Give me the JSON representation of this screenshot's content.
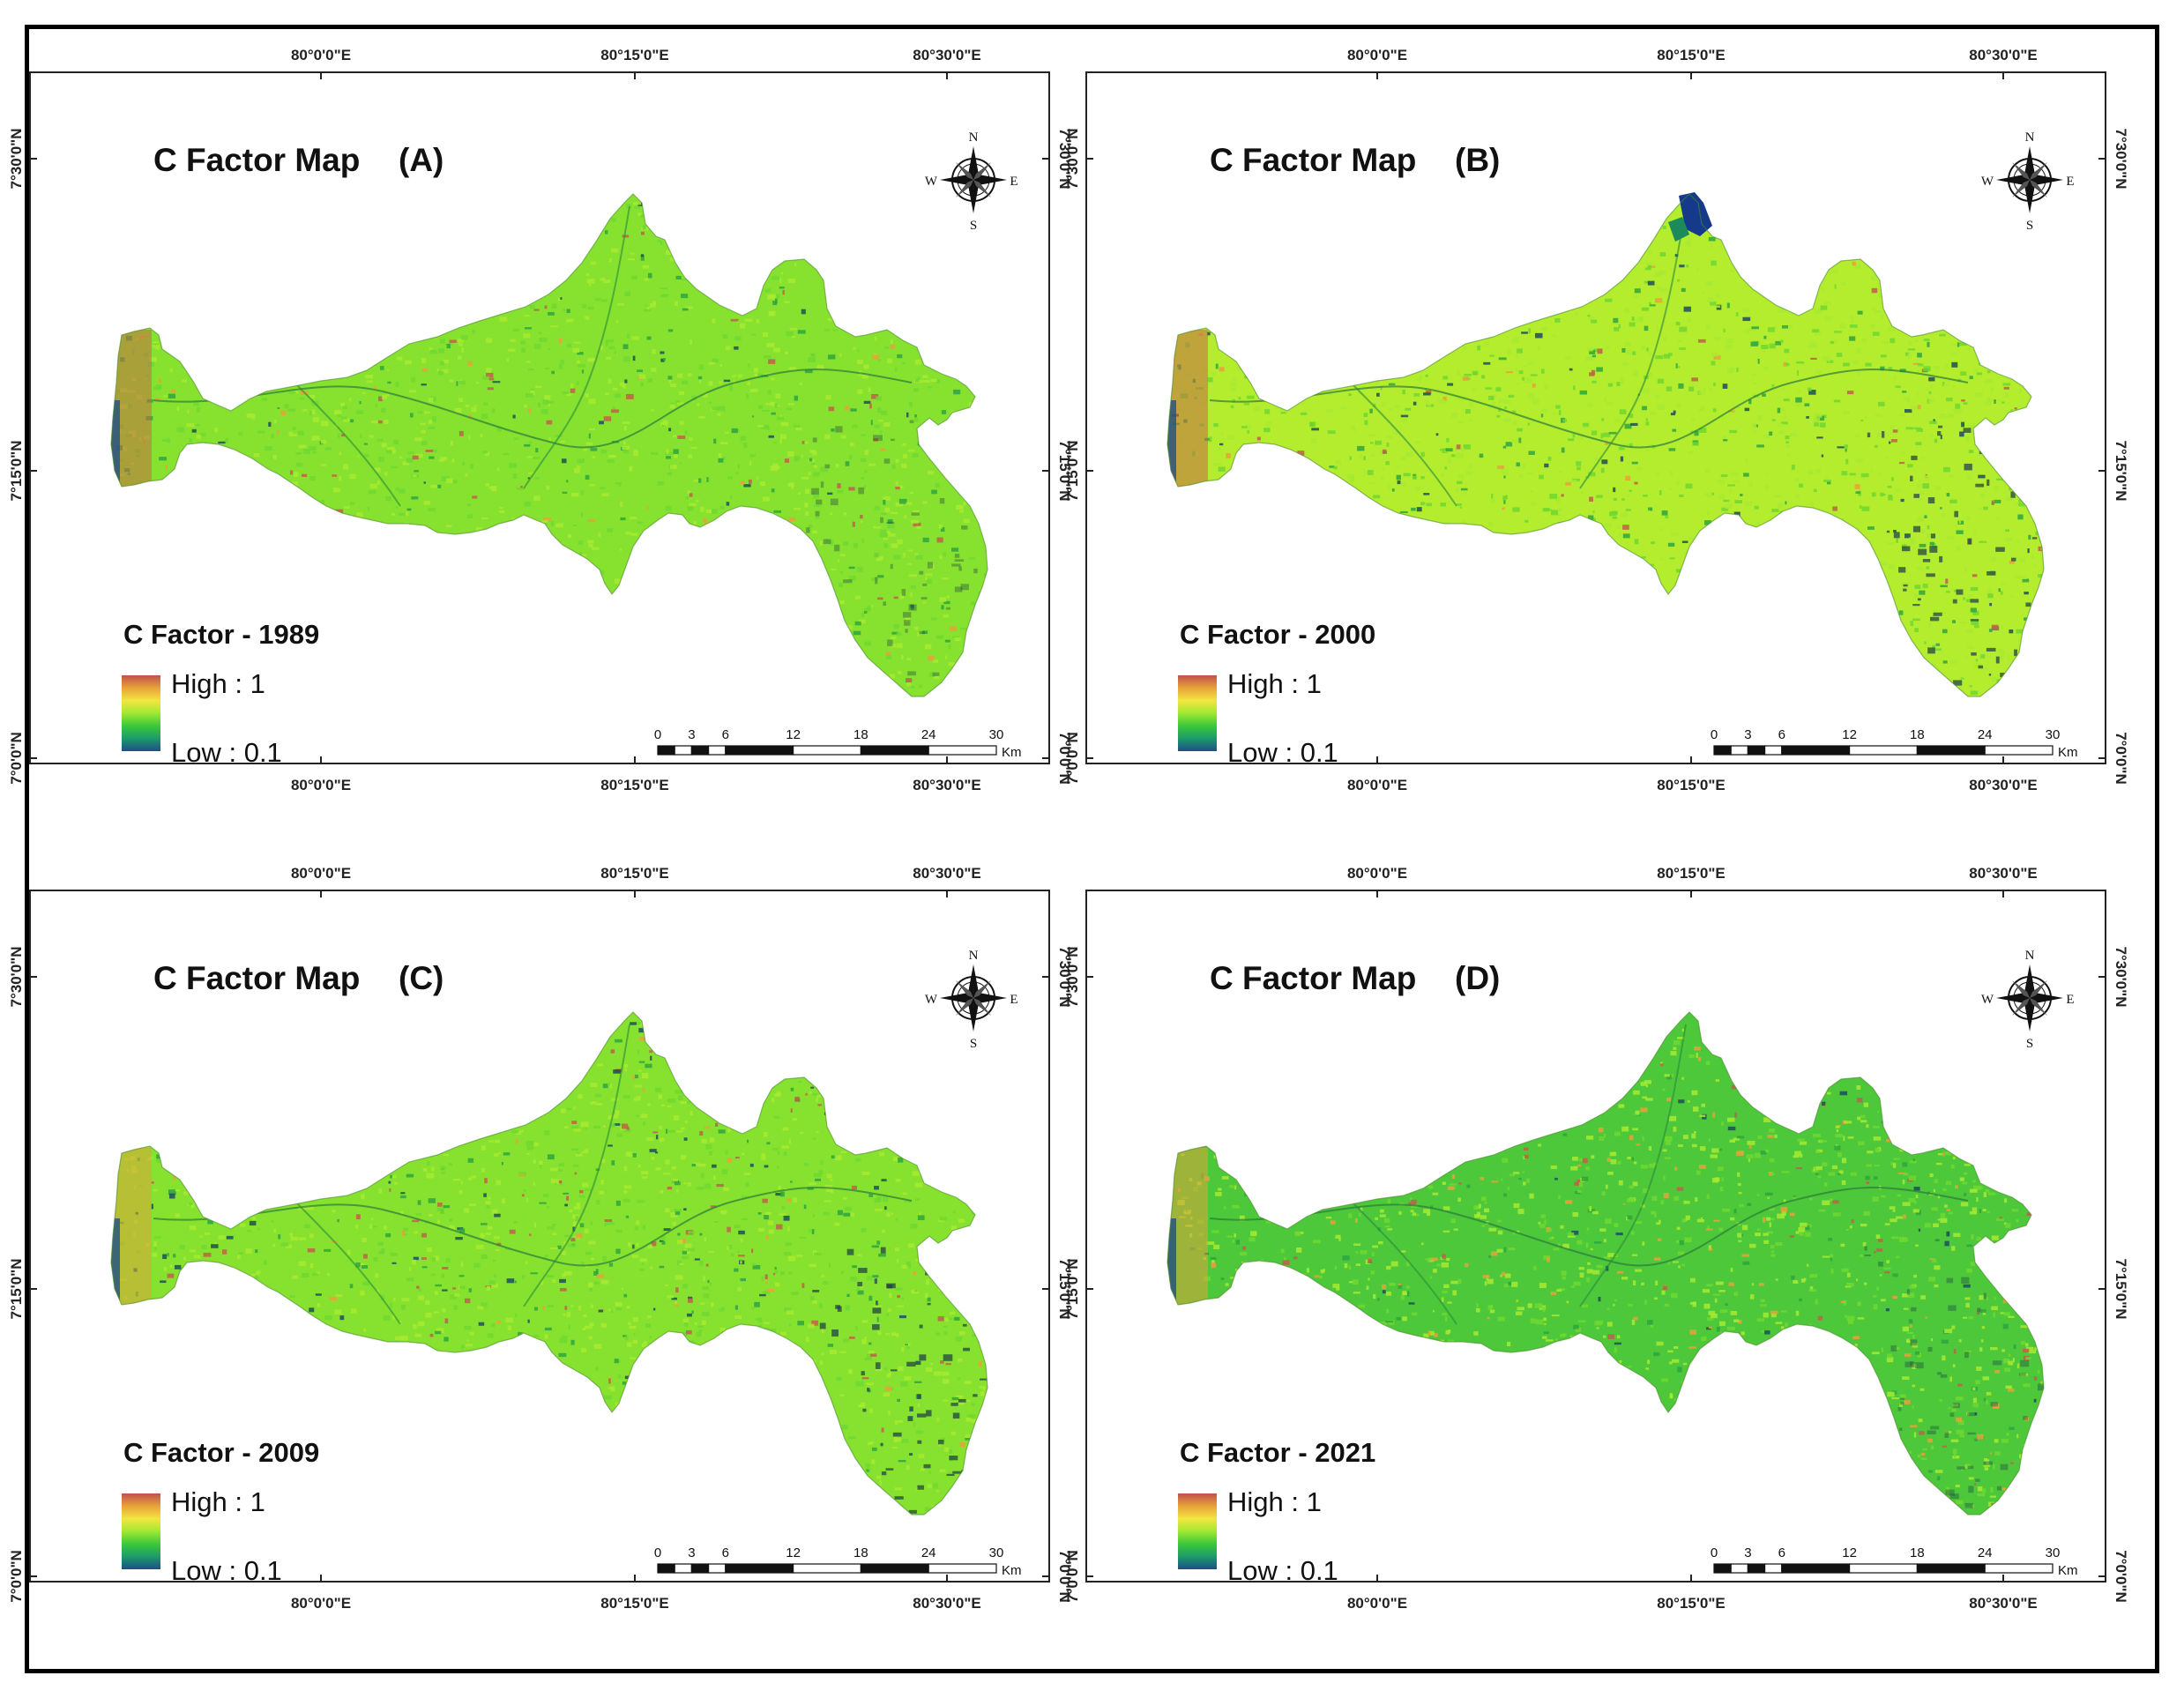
{
  "colors": {
    "ramp": [
      "#c0524a",
      "#e8a23a",
      "#f2e640",
      "#9fe832",
      "#3cc83a",
      "#1c9a6a",
      "#1e4f8a"
    ],
    "base_1989": "#86e22e",
    "base_2000": "#b4ec2e",
    "base_2009": "#86e22e",
    "base_2021": "#4cc83a",
    "reservoir": "#163a8a"
  },
  "axes": {
    "top_ticks": [
      "80°0'0\"E",
      "80°15'0\"E",
      "80°30'0\"E"
    ],
    "bottom_ticks": [
      "80°0'0\"E",
      "80°15'0\"E",
      "80°30'0\"E"
    ],
    "side_ticks": [
      "7°30'0\"N",
      "7°15'0\"N",
      "7°0'0\"N"
    ]
  },
  "compass": {
    "n": "N",
    "s": "S",
    "e": "E",
    "w": "W"
  },
  "legend": {
    "high": "High : 1",
    "low": "Low : 0.1"
  },
  "scale_bar": {
    "ticks": [
      "0",
      "3",
      "6",
      "12",
      "18",
      "24",
      "30"
    ],
    "unit": "Km"
  },
  "panels": [
    {
      "title": "C Factor Map",
      "letter": "(A)",
      "legend_title": "C Factor - 1989",
      "base_color_key": "base_1989"
    },
    {
      "title": "C Factor Map",
      "letter": "(B)",
      "legend_title": "C Factor - 2000",
      "base_color_key": "base_2000"
    },
    {
      "title": "C Factor Map",
      "letter": "(C)",
      "legend_title": "C Factor - 2009",
      "base_color_key": "base_2009"
    },
    {
      "title": "C Factor Map",
      "letter": "(D)",
      "legend_title": "C Factor - 2021",
      "base_color_key": "base_2021"
    }
  ]
}
